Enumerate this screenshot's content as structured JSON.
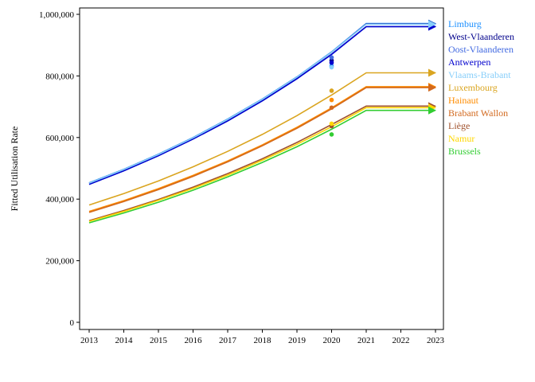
{
  "chart_data": {
    "type": "line",
    "title": "",
    "xlabel": "",
    "ylabel": "Fitted Utilisation Rate",
    "xlim": [
      2013,
      2023
    ],
    "ylim": [
      0,
      1000000
    ],
    "x_ticks": [
      2013,
      2014,
      2015,
      2016,
      2017,
      2018,
      2019,
      2020,
      2021,
      2022,
      2023
    ],
    "y_ticks": [
      0,
      200000,
      400000,
      600000,
      800000,
      1000000
    ],
    "y_tick_labels": [
      "0",
      "200,000",
      "400,000",
      "600,000",
      "800,000",
      "1,000,000"
    ],
    "grid": false,
    "legend_position": "right",
    "x": [
      2013,
      2014,
      2015,
      2016,
      2017,
      2018,
      2019,
      2020,
      2021,
      2022,
      2023
    ],
    "series": [
      {
        "name": "Limburg",
        "color": "#1e90ff",
        "values": [
          453000,
          497000,
          546000,
          600000,
          660000,
          725000,
          797000,
          878000,
          970000,
          970000,
          970000
        ],
        "observed_2020": 832000
      },
      {
        "name": "West-Vlaanderen",
        "color": "#00008b",
        "values": [
          452000,
          496000,
          545000,
          599000,
          659000,
          724000,
          796000,
          877000,
          969000,
          969000,
          969000
        ],
        "observed_2020": 850000
      },
      {
        "name": "Oost-Vlaanderen",
        "color": "#4169e1",
        "values": [
          448000,
          492000,
          541000,
          595000,
          654000,
          719000,
          791000,
          870000,
          960000,
          960000,
          960000
        ],
        "observed_2020": 860000
      },
      {
        "name": "Antwerpen",
        "color": "#0000cd",
        "values": [
          448000,
          492000,
          541000,
          595000,
          654000,
          719000,
          791000,
          870000,
          960000,
          960000,
          960000
        ],
        "observed_2020": 843000
      },
      {
        "name": "Vlaams-Brabant",
        "color": "#87cefa",
        "values": [
          452000,
          496000,
          545000,
          599000,
          659000,
          724000,
          796000,
          877000,
          968000,
          968000,
          968000
        ],
        "observed_2020": 828000
      },
      {
        "name": "Luxembourg",
        "color": "#daa520",
        "values": [
          381000,
          418000,
          459000,
          505000,
          555000,
          610000,
          671000,
          738000,
          810000,
          810000,
          810000
        ],
        "observed_2020": 752000
      },
      {
        "name": "Hainaut",
        "color": "#ff8c00",
        "values": [
          360000,
          395000,
          434000,
          477000,
          524000,
          576000,
          633000,
          696000,
          765000,
          765000,
          765000
        ],
        "observed_2020": 722000
      },
      {
        "name": "Brabant Wallon",
        "color": "#d2691e",
        "values": [
          357000,
          392000,
          431000,
          474000,
          521000,
          573000,
          630000,
          693000,
          762000,
          762000,
          762000
        ],
        "observed_2020": 697000
      },
      {
        "name": "Liège",
        "color": "#a0522d",
        "values": [
          330000,
          363000,
          399000,
          439000,
          483000,
          531000,
          584000,
          642000,
          702000,
          702000,
          702000
        ],
        "observed_2020": 637000
      },
      {
        "name": "Namur",
        "color": "#ffd700",
        "values": [
          328000,
          360000,
          396000,
          435000,
          478000,
          526000,
          578000,
          635000,
          697000,
          697000,
          697000
        ],
        "observed_2020": 645000
      },
      {
        "name": "Brussels",
        "color": "#32cd32",
        "values": [
          323000,
          355000,
          390000,
          429000,
          472000,
          519000,
          570000,
          627000,
          688000,
          688000,
          688000
        ],
        "observed_2020": 610000
      }
    ]
  }
}
